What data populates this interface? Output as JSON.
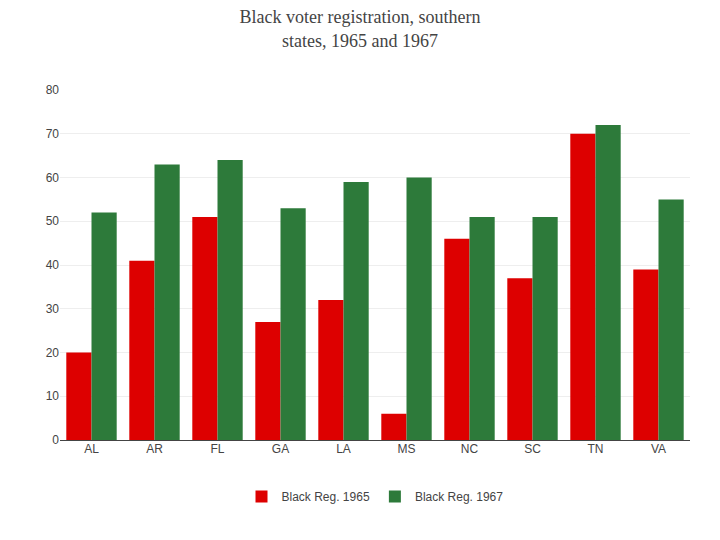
{
  "chart_data": {
    "type": "bar",
    "title": "Black voter registration, southern\nstates, 1965 and 1967",
    "categories": [
      "AL",
      "AR",
      "FL",
      "GA",
      "LA",
      "MS",
      "NC",
      "SC",
      "TN",
      "VA"
    ],
    "series": [
      {
        "name": "Black Reg. 1965",
        "color": "#dd0000",
        "values": [
          20,
          41,
          51,
          27,
          32,
          6,
          46,
          37,
          70,
          39
        ]
      },
      {
        "name": "Black Reg. 1967",
        "color": "#2d7a3a",
        "values": [
          52,
          63,
          64,
          53,
          59,
          60,
          51,
          51,
          72,
          55
        ]
      }
    ],
    "ylim": [
      0,
      80
    ],
    "yticks": [
      0,
      10,
      20,
      30,
      40,
      50,
      60,
      70,
      80
    ],
    "grid": true,
    "legend": "bottom"
  }
}
